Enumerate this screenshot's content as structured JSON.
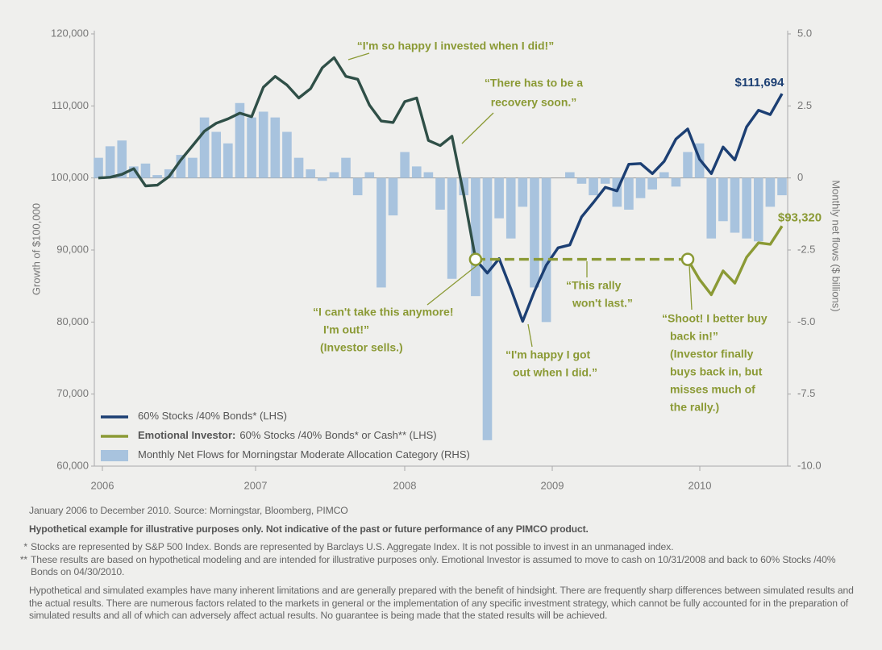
{
  "chart_data": {
    "type": "line",
    "ylabel": "Growth of $100,000",
    "y2label": "Monthly net flows ($ billions)",
    "xtick_labels": [
      "2006",
      "2007",
      "2008",
      "2009",
      "2010"
    ],
    "ylim": [
      60000,
      120000
    ],
    "yticks": [
      {
        "value": 60000,
        "label": "60,000"
      },
      {
        "value": 70000,
        "label": "70,000"
      },
      {
        "value": 80000,
        "label": "80,000"
      },
      {
        "value": 90000,
        "label": "90,000"
      },
      {
        "value": 100000,
        "label": "100,000"
      },
      {
        "value": 110000,
        "label": "110,000"
      },
      {
        "value": 120000,
        "label": "120,000"
      }
    ],
    "y2lim": [
      -10,
      5
    ],
    "y2ticks": [
      {
        "value": -10,
        "label": "-10.0"
      },
      -7.5,
      {
        "value": -5,
        "label": "-5.0"
      },
      -2.5,
      0,
      2.5,
      {
        "value": 5,
        "label": "5.0"
      }
    ],
    "grid": false,
    "series": [
      {
        "name": "60% Stocks /40% Bonds* (LHS)",
        "color": "#1c3f73",
        "overlap_color": "#2f4f47",
        "end_label": "$111,694",
        "values": [
          100000,
          100100,
          100500,
          101300,
          98900,
          99000,
          100200,
          102500,
          104500,
          106500,
          107600,
          108200,
          109000,
          108500,
          112600,
          114100,
          112900,
          111100,
          112400,
          115300,
          116700,
          114100,
          113700,
          110100,
          107900,
          107700,
          110600,
          111100,
          105200,
          104500,
          105800,
          97700,
          88700,
          86800,
          88800,
          84600,
          80100,
          84300,
          87900,
          90300,
          90700,
          94600,
          96600,
          98700,
          98200,
          101900,
          102000,
          100600,
          102300,
          105400,
          106800,
          102600,
          100600,
          104300,
          102500,
          107100,
          109400,
          108800,
          111694
        ]
      },
      {
        "name": "Emotional Investor:",
        "name_detail": "60% Stocks /40% Bonds* or Cash** (LHS)",
        "color": "#8b9a35",
        "end_label": "$93,320",
        "values": [
          null,
          null,
          null,
          null,
          null,
          null,
          null,
          null,
          null,
          null,
          null,
          null,
          null,
          null,
          null,
          null,
          null,
          null,
          null,
          null,
          null,
          null,
          null,
          null,
          null,
          null,
          null,
          null,
          null,
          null,
          null,
          null,
          88700,
          88700,
          88700,
          88700,
          88700,
          88700,
          88700,
          88700,
          88700,
          88700,
          88700,
          88700,
          88700,
          88700,
          88700,
          88700,
          88700,
          88700,
          88700,
          85900,
          83800,
          87100,
          85400,
          89000,
          91000,
          90800,
          93320
        ]
      },
      {
        "name": "Monthly Net Flows for Morningstar Moderate Allocation Category (RHS)",
        "type": "bar",
        "axis": "y2",
        "color": "#a8c3de",
        "values": [
          0.7,
          1.1,
          1.3,
          0.4,
          0.5,
          0.1,
          0.3,
          0.8,
          0.7,
          2.1,
          1.6,
          1.2,
          2.6,
          2.1,
          2.3,
          2.1,
          1.6,
          0.7,
          0.3,
          -0.1,
          0.2,
          0.7,
          -0.6,
          0.2,
          -3.8,
          -1.3,
          0.9,
          0.4,
          0.2,
          -1.1,
          -3.5,
          -0.6,
          -4.1,
          -9.1,
          -1.4,
          -2.1,
          -1.0,
          -3.8,
          -5.0,
          0.0,
          0.2,
          -0.2,
          -0.6,
          -0.2,
          -1.0,
          -1.1,
          -0.7,
          -0.4,
          0.2,
          -0.3,
          0.9,
          1.2,
          -2.1,
          -1.5,
          -1.9,
          -2.1,
          -2.2,
          -1.0,
          -0.6
        ]
      }
    ],
    "annotations": [
      {
        "lines": [
          "“I'm so happy I invested when I did!”"
        ]
      },
      {
        "lines": [
          "“There has to be a",
          "recovery soon.”"
        ]
      },
      {
        "lines": [
          "“I can't take this anymore!",
          "I'm out!”",
          "(Investor sells.)"
        ]
      },
      {
        "lines": [
          "“This rally",
          "won't last.”"
        ]
      },
      {
        "lines": [
          "“I'm happy I got",
          "out when I did.”"
        ]
      },
      {
        "lines": [
          "“Shoot! I better buy",
          "back in!”",
          "(Investor finally",
          "buys back in, but",
          "misses much of",
          "the rally.)"
        ]
      }
    ]
  },
  "notes": {
    "source": "January 2006 to December 2010. Source: Morningstar, Bloomberg, PIMCO",
    "disclaimer": "Hypothetical example for illustrative purposes only. Not indicative of the past or future performance of any PIMCO product.",
    "footnotes": [
      {
        "marker": "*",
        "text": "Stocks are represented by S&P 500 Index. Bonds are represented by Barclays U.S. Aggregate Index. It is not possible to invest in an unmanaged index."
      },
      {
        "marker": "**",
        "text": "These results are based on hypothetical modeling and are intended for illustrative purposes only. Emotional Investor is assumed to move to cash on 10/31/2008 and back to 60% Stocks /40% Bonds on 04/30/2010."
      }
    ],
    "hindsight": "Hypothetical and simulated examples have many inherent limitations and are generally prepared with the benefit of hindsight. There are frequently sharp differences between simulated results and the actual results. There are numerous factors related to the markets in general or the implementation of any specific investment strategy, which cannot be fully accounted for in the preparation of simulated results and all of which can adversely affect actual results. No guarantee is being made that the stated results will be achieved."
  }
}
